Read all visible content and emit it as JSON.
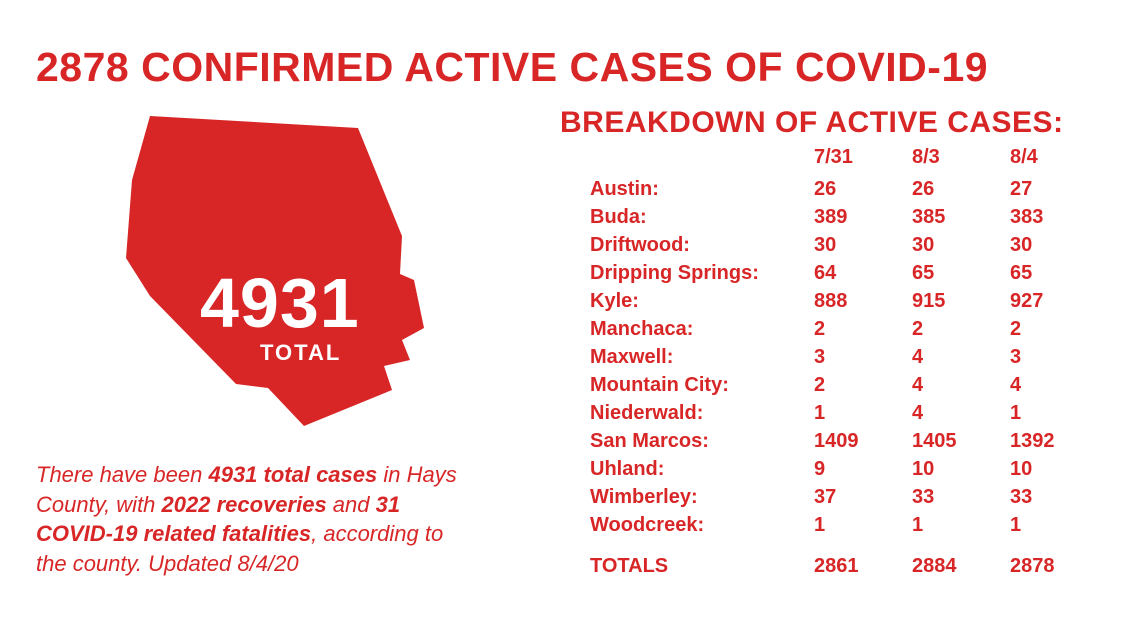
{
  "colors": {
    "primary": "#d82627",
    "background": "#ffffff",
    "on_primary": "#ffffff"
  },
  "typography": {
    "headline_fontsize": 41,
    "body_fontsize": 22,
    "table_fontsize": 20,
    "map_number_fontsize": 70
  },
  "headline": "2878 CONFIRMED ACTIVE CASES OF COVID-19",
  "map": {
    "total_number": "4931",
    "total_label": "TOTAL",
    "fill": "#d82627"
  },
  "summary": {
    "prefix": "There have been ",
    "bold1": "4931 total cases",
    "mid1": " in Hays County, with ",
    "bold2": "2022 recoveries",
    "mid2": " and ",
    "bold3": "31 COVID-19 related fatalities",
    "suffix": ", according to the county. Updated 8/4/20"
  },
  "breakdown": {
    "title": "BREAKDOWN OF ACTIVE CASES:",
    "date_columns": [
      "7/31",
      "8/3",
      "8/4"
    ],
    "rows": [
      {
        "loc": "Austin:",
        "v": [
          "26",
          "26",
          "27"
        ]
      },
      {
        "loc": "Buda:",
        "v": [
          "389",
          "385",
          "383"
        ]
      },
      {
        "loc": "Driftwood:",
        "v": [
          "30",
          "30",
          "30"
        ]
      },
      {
        "loc": "Dripping Springs:",
        "v": [
          "64",
          "65",
          "65"
        ]
      },
      {
        "loc": "Kyle:",
        "v": [
          "888",
          "915",
          "927"
        ]
      },
      {
        "loc": "Manchaca:",
        "v": [
          "2",
          "2",
          "2"
        ]
      },
      {
        "loc": "Maxwell:",
        "v": [
          "3",
          "4",
          "3"
        ]
      },
      {
        "loc": "Mountain City:",
        "v": [
          "2",
          "4",
          "4"
        ]
      },
      {
        "loc": "Niederwald:",
        "v": [
          "1",
          "4",
          "1"
        ]
      },
      {
        "loc": "San Marcos:",
        "v": [
          "1409",
          "1405",
          "1392"
        ]
      },
      {
        "loc": "Uhland:",
        "v": [
          "9",
          "10",
          "10"
        ]
      },
      {
        "loc": "Wimberley:",
        "v": [
          "37",
          "33",
          "33"
        ]
      },
      {
        "loc": "Woodcreek:",
        "v": [
          "1",
          "1",
          "1"
        ]
      }
    ],
    "totals_label": "TOTALS",
    "totals": [
      "2861",
      "2884",
      "2878"
    ]
  }
}
